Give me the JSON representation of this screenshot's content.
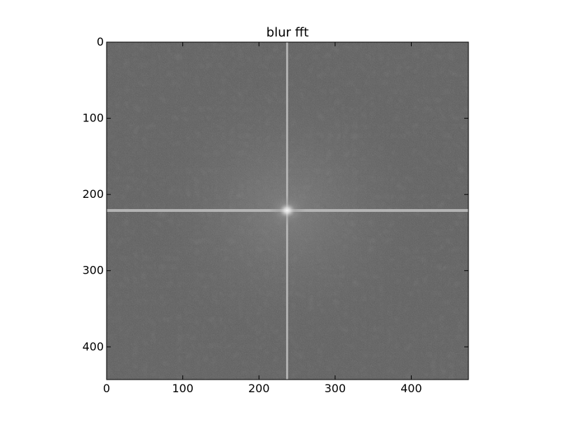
{
  "chart_data": {
    "type": "heatmap",
    "title": "blur fft",
    "colormap": "gray",
    "image_shape": [
      443,
      475
    ],
    "xlim": [
      0,
      475
    ],
    "ylim": [
      443,
      0
    ],
    "y_inverted": true,
    "xticks": [
      0,
      100,
      200,
      300,
      400
    ],
    "yticks": [
      0,
      100,
      200,
      300,
      400
    ],
    "xtick_labels": [
      "0",
      "100",
      "200",
      "300",
      "400"
    ],
    "ytick_labels": [
      "0",
      "100",
      "200",
      "300",
      "400"
    ],
    "xlabel": "",
    "ylabel": "",
    "grid": false,
    "features": {
      "center": [
        237,
        221
      ],
      "horizontal_streak_row": 221,
      "vertical_streak_col": 237,
      "background_gray": "#5e5e5e",
      "streak_gray": "#bdbdbd",
      "center_gray": "#f4f4f4"
    }
  }
}
